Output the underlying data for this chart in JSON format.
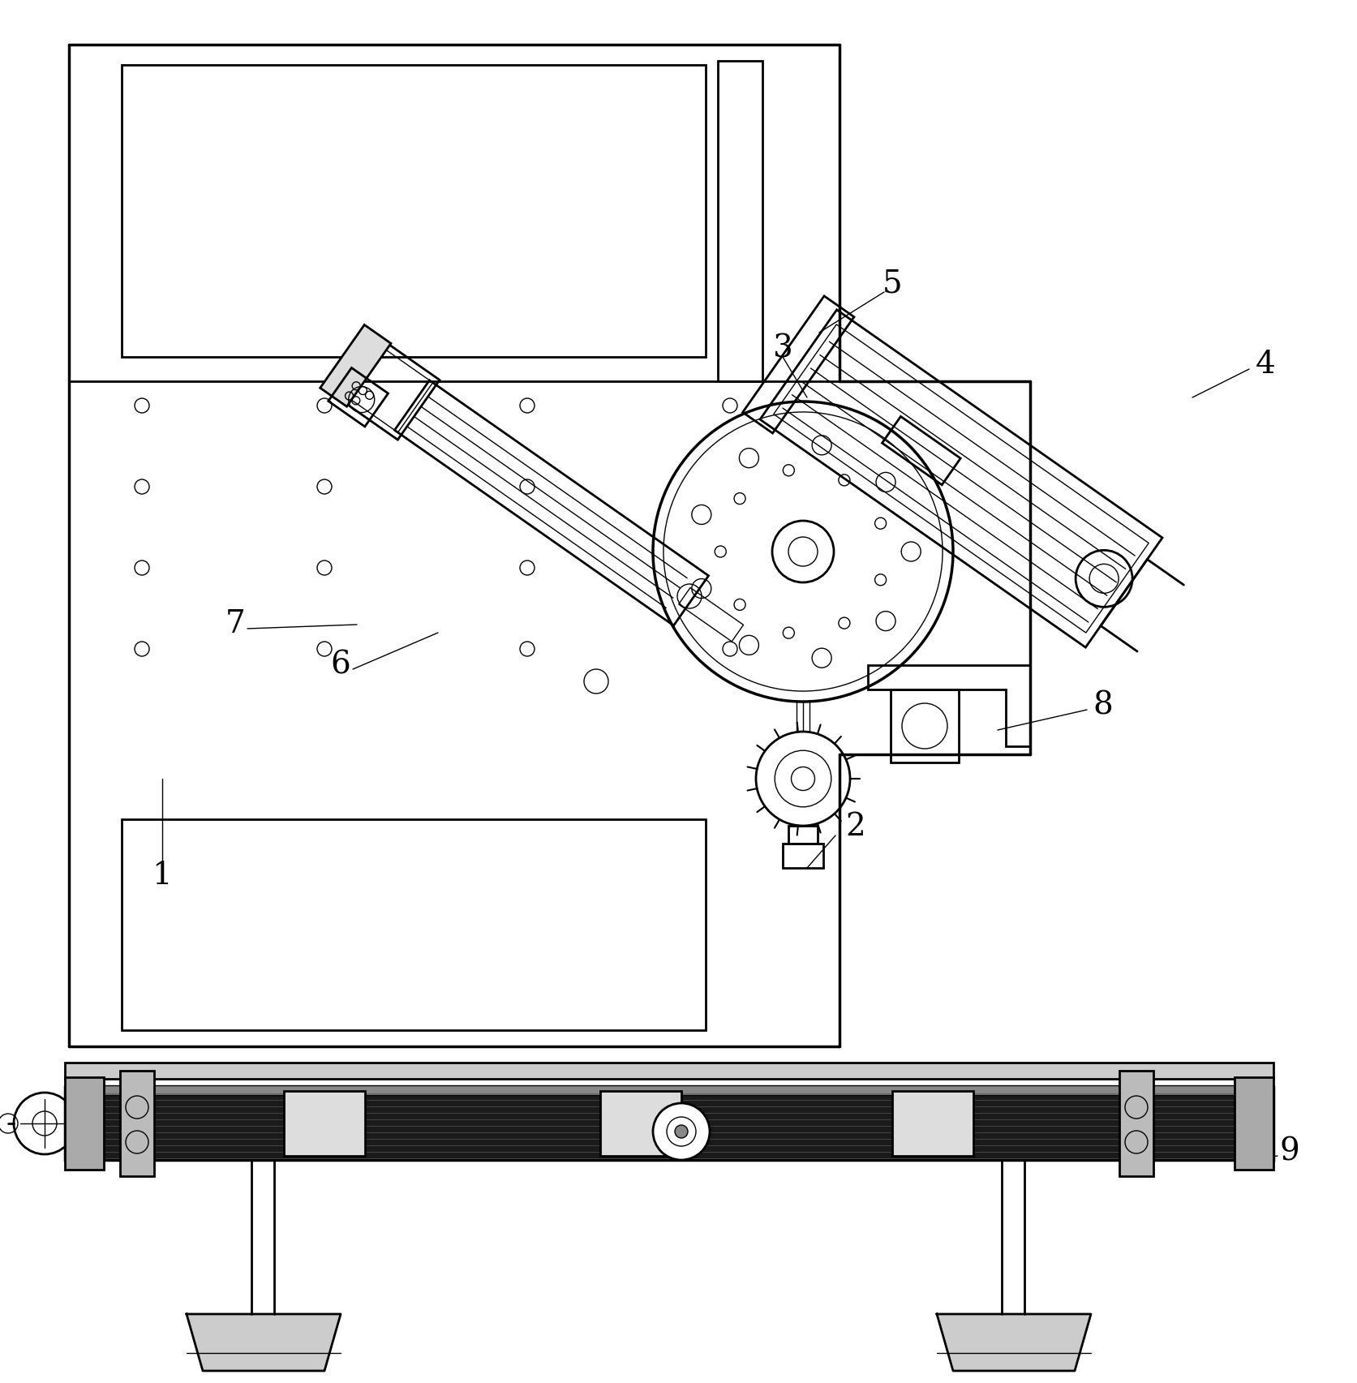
{
  "bg_color": "#ffffff",
  "line_color": "#000000",
  "label_fontsize": 28,
  "lw_main": 2.0,
  "lw_thick": 2.5,
  "lw_thin": 1.0
}
